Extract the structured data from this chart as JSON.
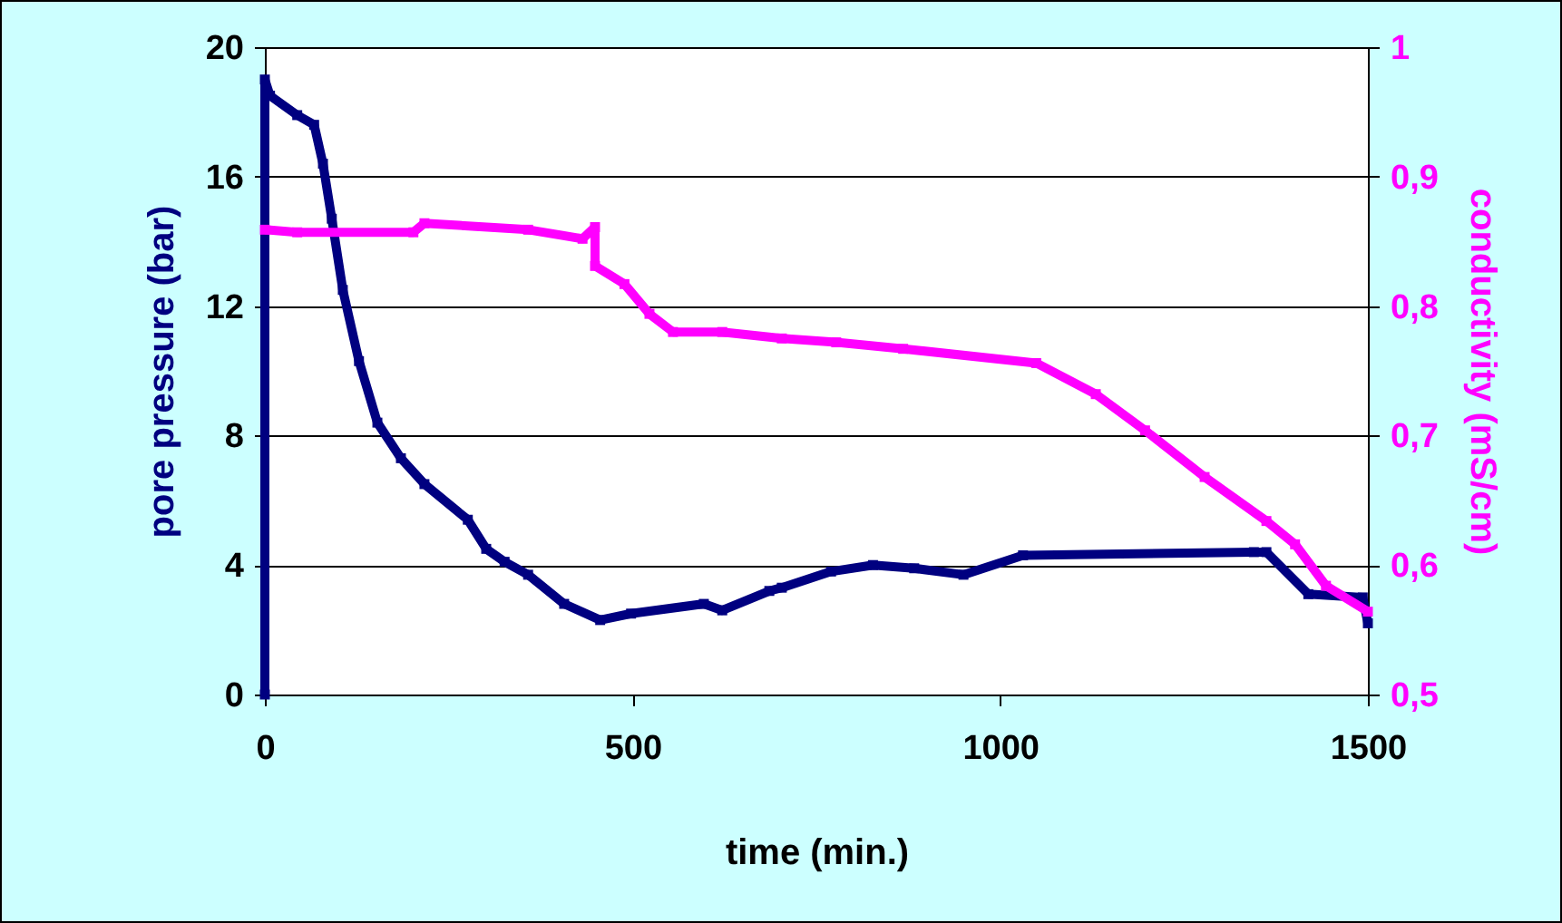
{
  "chart_data": {
    "type": "line",
    "xlabel": "time (min.)",
    "ylabel": "pore pressure  (bar)",
    "y2label": "conductivity  (mS/cm)",
    "xlim": [
      0,
      1500
    ],
    "xticks": [
      0,
      500,
      1000,
      1500
    ],
    "ylim": [
      0,
      20
    ],
    "yticks": [
      0,
      4,
      8,
      12,
      16,
      20
    ],
    "y2lim": [
      0.5,
      1
    ],
    "y2ticks": [
      {
        "value": 0.5,
        "label": "0,5"
      },
      {
        "value": 0.6,
        "label": "0,6"
      },
      {
        "value": 0.7,
        "label": "0,7"
      },
      {
        "value": 0.8,
        "label": "0,8"
      },
      {
        "value": 0.9,
        "label": "0,9"
      },
      1
    ],
    "grid": "y",
    "marker": "square",
    "line_style": "solid",
    "series": [
      {
        "color": "#000080",
        "x": [
          0,
          0,
          7,
          44,
          67,
          79,
          91,
          106,
          128,
          153,
          185,
          217,
          276,
          301,
          326,
          358,
          407,
          456,
          498,
          597,
          622,
          686,
          703,
          770,
          827,
          883,
          950,
          1031,
          1345,
          1362,
          1419,
          1493,
          1500
        ],
        "values": [
          0,
          19,
          18.5,
          17.9,
          17.6,
          16.4,
          14.7,
          12.5,
          10.3,
          8.4,
          7.3,
          6.5,
          5.4,
          4.5,
          4.1,
          3.7,
          2.8,
          2.3,
          2.5,
          2.8,
          2.6,
          3.2,
          3.3,
          3.8,
          4.0,
          3.9,
          3.7,
          4.3,
          4.4,
          4.4,
          3.1,
          3.0,
          2.2
        ]
      },
      {
        "color": "#ff00ff",
        "axis": "y2",
        "x": [
          0,
          44,
          202,
          217,
          358,
          432,
          449,
          449,
          489,
          523,
          555,
          622,
          703,
          777,
          868,
          1049,
          1130,
          1197,
          1278,
          1362,
          1401,
          1443,
          1500
        ],
        "values": [
          0.859,
          0.857,
          0.857,
          0.864,
          0.859,
          0.852,
          0.861,
          0.831,
          0.817,
          0.794,
          0.78,
          0.78,
          0.775,
          0.772,
          0.767,
          0.756,
          0.732,
          0.704,
          0.668,
          0.634,
          0.616,
          0.584,
          0.564
        ]
      }
    ]
  }
}
